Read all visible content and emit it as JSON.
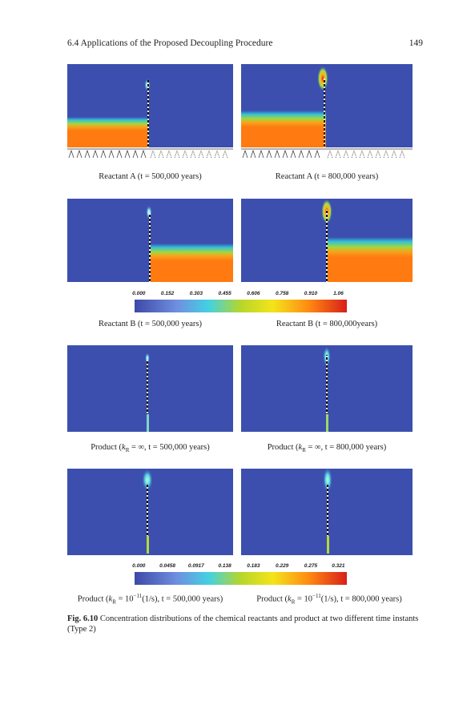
{
  "header": {
    "section": "6.4   Applications of the Proposed Decoupling Procedure",
    "page": "149"
  },
  "row1": {
    "left_caption": "Reactant A (t = 500,000 years)",
    "right_caption": "Reactant A (t = 800,000 years)"
  },
  "row2": {
    "left_caption": "Reactant B (t = 500,000 years)",
    "right_caption": "Reactant B (t = 800,000years)"
  },
  "colorbar_reactant": {
    "ticks": [
      "0.000",
      "0.152",
      "0.303",
      "0.455",
      "0.606",
      "0.758",
      "0.910",
      "1.06"
    ]
  },
  "row3": {
    "left": {
      "pre": "Product (",
      "k": "k",
      "sub": "R",
      "post": " = ∞, t = 500,000 years)"
    },
    "right": {
      "pre": "Product (",
      "k": "k",
      "sub": "R",
      "post": " = ∞, t = 800,000 years)"
    }
  },
  "row4": {
    "left": {
      "pre": "Product (",
      "k": "k",
      "sub": "R",
      "mid": " = 10",
      "sup": "−11",
      "post": "(1/s), t = 500,000 years)"
    },
    "right": {
      "pre": "Product (",
      "k": "k",
      "sub": "R",
      "mid": " = 10",
      "sup": "−11",
      "post": "(1/s), t = 800,000 years)"
    }
  },
  "colorbar_product": {
    "ticks": [
      "0.000",
      "0.0458",
      "0.0917",
      "0.138",
      "0.183",
      "0.229",
      "0.275",
      "0.321"
    ]
  },
  "figure_caption": {
    "label": "Fig. 6.10",
    "text": "  Concentration distributions of the chemical reactants and product at two different time instants (Type 2)"
  }
}
